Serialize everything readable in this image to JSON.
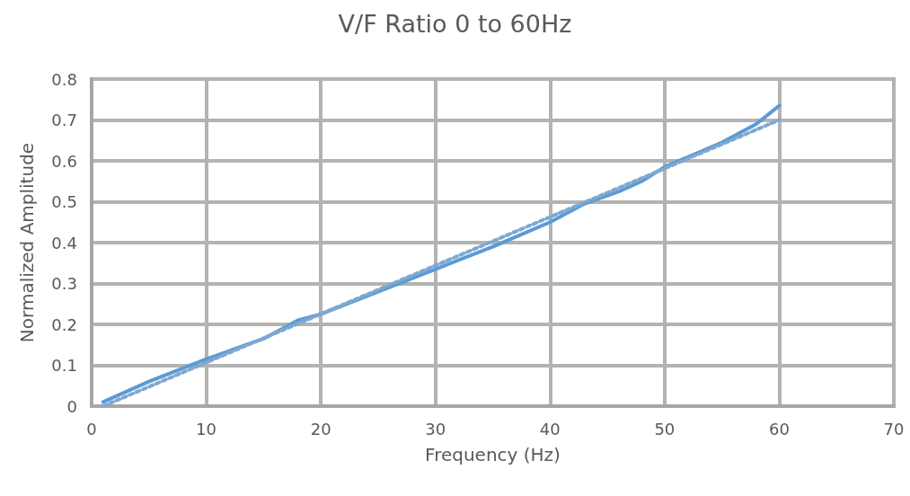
{
  "chart_data": {
    "type": "line",
    "title": "V/F Ratio 0 to 60Hz",
    "xlabel": "Frequency (Hz)",
    "ylabel": "Normalized Amplitude",
    "xlim": [
      0,
      70
    ],
    "xticks": [
      0,
      10,
      20,
      30,
      40,
      50,
      60,
      70
    ],
    "ylim": [
      0,
      0.8
    ],
    "yticks": [
      0,
      0.1,
      0.2,
      0.3,
      0.4,
      0.5,
      0.6,
      0.7,
      0.8
    ],
    "grid": true,
    "marker": "none",
    "series": [
      {
        "color": "#5b9bd5",
        "line_style": "solid",
        "x": [
          1,
          5,
          10,
          15,
          18,
          20,
          25,
          30,
          35,
          40,
          43,
          46,
          48,
          50,
          55,
          58,
          60
        ],
        "values": [
          0.01,
          0.06,
          0.115,
          0.165,
          0.21,
          0.225,
          0.28,
          0.335,
          0.39,
          0.45,
          0.495,
          0.525,
          0.55,
          0.585,
          0.645,
          0.69,
          0.735
        ]
      },
      {
        "color": "#7fa8d0",
        "line_style": "dotted",
        "x": [
          1,
          60
        ],
        "values": [
          0,
          0.7
        ]
      }
    ]
  }
}
